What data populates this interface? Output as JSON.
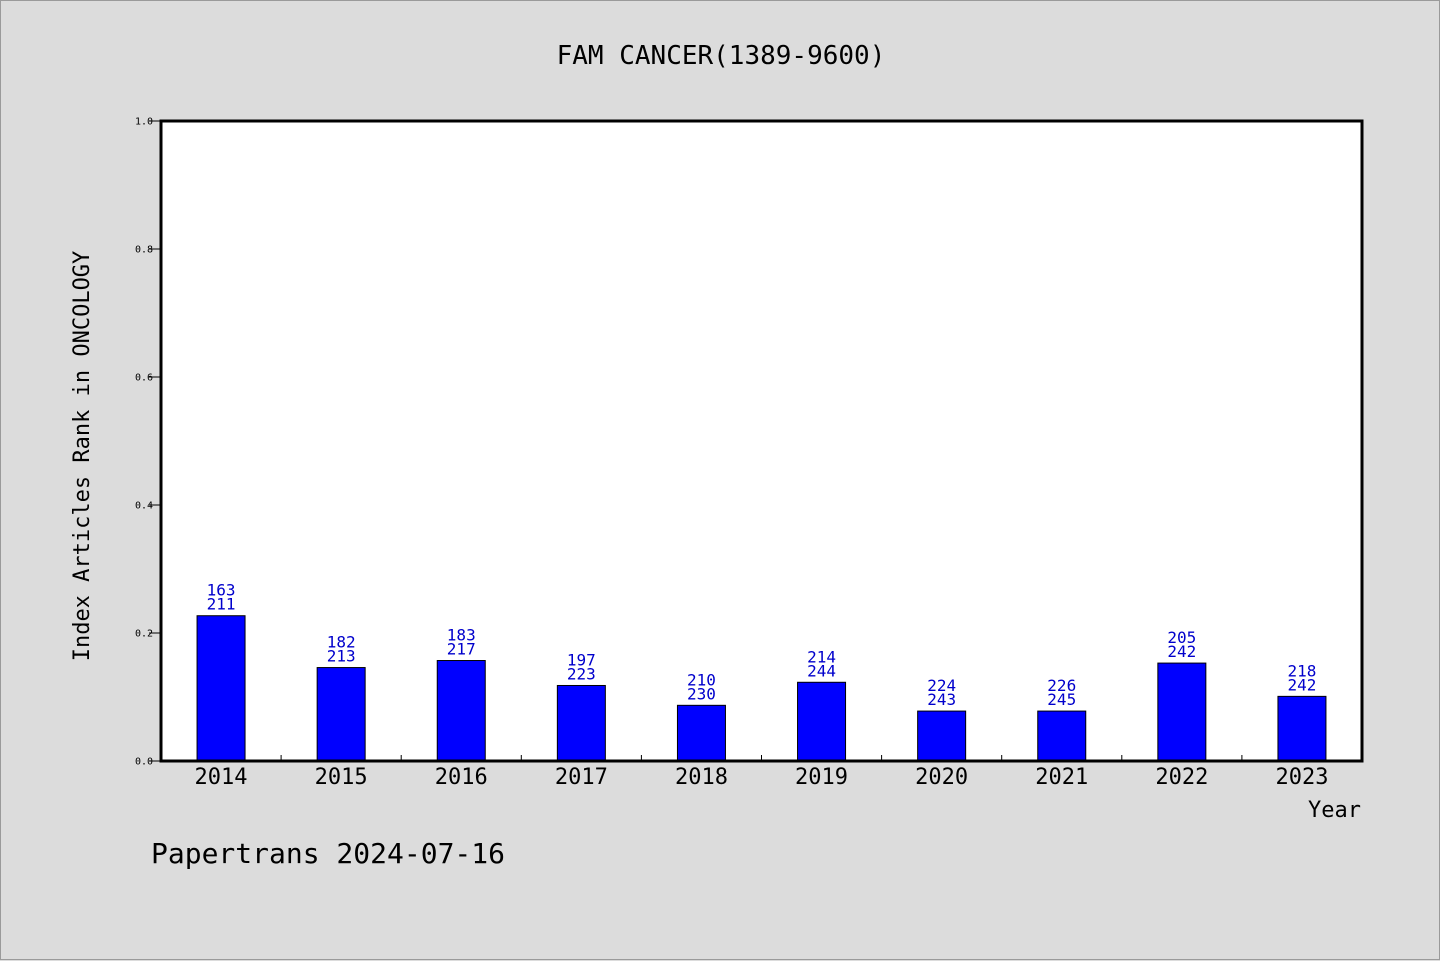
{
  "chart_data": {
    "type": "bar",
    "title": "FAM CANCER(1389-9600)",
    "xlabel": "Year",
    "ylabel": "Index Articles Rank in ONCOLOGY",
    "ylim": [
      0,
      1.0
    ],
    "yticks": [
      "0.0",
      "0.2",
      "0.4",
      "0.6",
      "0.8",
      "1.0"
    ],
    "categories": [
      "2014",
      "2015",
      "2016",
      "2017",
      "2018",
      "2019",
      "2020",
      "2021",
      "2022",
      "2023"
    ],
    "values": [
      0.227,
      0.146,
      0.157,
      0.118,
      0.087,
      0.123,
      0.078,
      0.078,
      0.153,
      0.101
    ],
    "label_top": [
      "163",
      "182",
      "183",
      "197",
      "210",
      "214",
      "224",
      "226",
      "205",
      "218"
    ],
    "label_bottom": [
      "211",
      "213",
      "217",
      "223",
      "230",
      "244",
      "243",
      "245",
      "242",
      "242"
    ],
    "bar_color": "#0000ff",
    "label_color": "#0000cc",
    "grid": false
  },
  "footer": "Papertrans 2024-07-16"
}
